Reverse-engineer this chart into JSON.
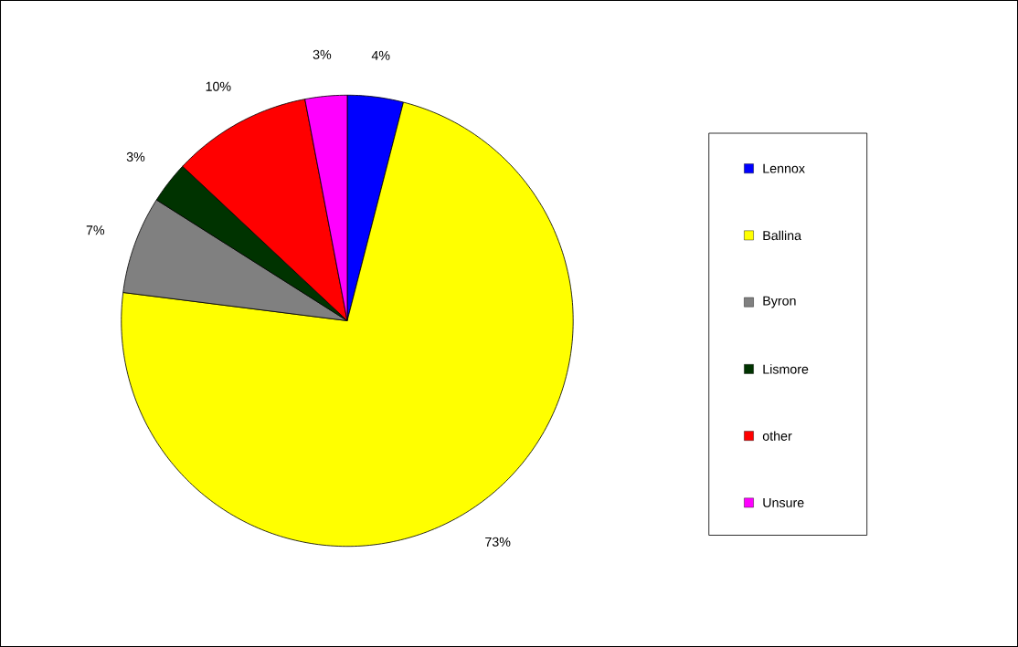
{
  "chart_data": {
    "type": "pie",
    "categories": [
      "Lennox",
      "Ballina",
      "Byron",
      "Lismore",
      "other",
      "Unsure"
    ],
    "values": [
      4,
      73,
      7,
      3,
      10,
      3
    ],
    "colors": [
      "#0000ff",
      "#ffff00",
      "#808080",
      "#003300",
      "#ff0000",
      "#ff00ff"
    ],
    "value_labels": [
      "4%",
      "73%",
      "7%",
      "3%",
      "10%",
      "3%"
    ],
    "legend": "right"
  }
}
